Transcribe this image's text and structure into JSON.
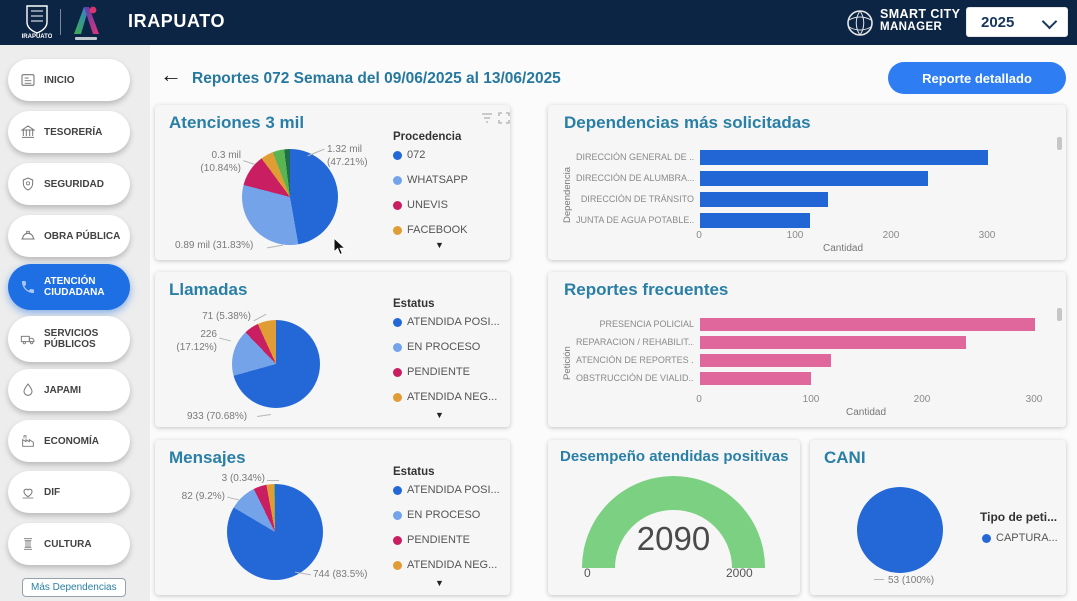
{
  "header": {
    "app_title": "IRAPUATO",
    "crest_caption": "IRAPUATO",
    "smart_city_line1": "SMART CITY",
    "smart_city_line2": "MANAGER",
    "year": "2025"
  },
  "sidebar": {
    "items": [
      {
        "label": "INICIO"
      },
      {
        "label": "TESORERÍA"
      },
      {
        "label": "SEGURIDAD"
      },
      {
        "label": "OBRA PÚBLICA"
      },
      {
        "label": "ATENCIÓN CIUDADANA"
      },
      {
        "label": "SERVICIOS PÚBLICOS"
      },
      {
        "label": "JAPAMI"
      },
      {
        "label": "ECONOMÍA"
      },
      {
        "label": "DIF"
      },
      {
        "label": "CULTURA"
      }
    ],
    "active_item": "ATENCIÓN CIUDADANA",
    "active_color": "#1e6fe3",
    "more_button_label": "Más Dependencias"
  },
  "toolbar": {
    "page_title": "Reportes 072 Semana del 09/06/2025 al 13/06/2025",
    "detail_button_label": "Reporte detallado",
    "button_color": "#2e7df2"
  },
  "chart_data": [
    {
      "id": "atenciones",
      "type": "pie",
      "title": "Atenciones 3 mil",
      "legend_title": "Procedencia",
      "legend_position": "right",
      "legend": [
        {
          "label": "072",
          "color": "#2468d7"
        },
        {
          "label": "WHATSAPP",
          "color": "#74a3ea"
        },
        {
          "label": "UNEVIS",
          "color": "#ca1e63"
        },
        {
          "label": "FACEBOOK",
          "color": "#e09c35"
        }
      ],
      "slices": [
        {
          "label": "1.32 mil (47.21%)",
          "pct": 47.21,
          "color": "#2468d7"
        },
        {
          "label": "0.89 mil (31.83%)",
          "pct": 31.83,
          "color": "#74a3ea"
        },
        {
          "label": "0.3 mil (10.84%)",
          "pct": 10.84,
          "color": "#ca1e63"
        },
        {
          "pct": 4.3,
          "color": "#e09c35"
        },
        {
          "pct": 3.9,
          "color": "#58b552"
        },
        {
          "pct": 1.92,
          "color": "#1e6e49"
        }
      ]
    },
    {
      "id": "dependencias",
      "type": "bar",
      "title": "Dependencias más solicitadas",
      "xlabel": "Cantidad",
      "ylabel": "Dependencia",
      "xticks": [
        "0",
        "100",
        "200",
        "300"
      ],
      "xlim": [
        0,
        300
      ],
      "bar_color": "#2166d4",
      "categories": [
        "DIRECCIÓN GENERAL DE ...",
        "DIRECCIÓN DE ALUMBRA...",
        "DIRECCIÓN DE TRÁNSITO",
        "JUNTA DE AGUA POTABLE..."
      ],
      "values": [
        300,
        237,
        133,
        115
      ]
    },
    {
      "id": "llamadas",
      "type": "pie",
      "title": "Llamadas",
      "legend_title": "Estatus",
      "legend_position": "right",
      "legend": [
        {
          "label": "ATENDIDA POSI...",
          "color": "#2468d7"
        },
        {
          "label": "EN PROCESO",
          "color": "#74a3ea"
        },
        {
          "label": "PENDIENTE",
          "color": "#ca1e63"
        },
        {
          "label": "ATENDIDA NEG...",
          "color": "#e09c35"
        }
      ],
      "slices": [
        {
          "label": "933 (70.68%)",
          "pct": 70.68,
          "color": "#2468d7"
        },
        {
          "label": "226 (17.12%)",
          "pct": 17.12,
          "color": "#74a3ea"
        },
        {
          "label": "71 (5.38%)",
          "pct": 5.38,
          "color": "#ca1e63"
        },
        {
          "pct": 6.82,
          "color": "#e09c35"
        }
      ]
    },
    {
      "id": "reportes_frecuentes",
      "type": "bar",
      "title": "Reportes frecuentes",
      "xlabel": "Cantidad",
      "ylabel": "Petición",
      "xticks": [
        "0",
        "100",
        "200",
        "300"
      ],
      "xlim": [
        0,
        300
      ],
      "bar_color": "#e0679c",
      "categories": [
        "PRESENCIA POLICIAL",
        "REPARACION / REHABILIT...",
        "ATENCIÓN DE REPORTES ...",
        "OBSTRUCCIÓN DE VIALID..."
      ],
      "values": [
        300,
        238,
        117,
        99
      ]
    },
    {
      "id": "mensajes",
      "type": "pie",
      "title": "Mensajes",
      "legend_title": "Estatus",
      "legend_position": "right",
      "legend": [
        {
          "label": "ATENDIDA POSI...",
          "color": "#2468d7"
        },
        {
          "label": "EN PROCESO",
          "color": "#74a3ea"
        },
        {
          "label": "PENDIENTE",
          "color": "#ca1e63"
        },
        {
          "label": "ATENDIDA NEG...",
          "color": "#e09c35"
        }
      ],
      "slices": [
        {
          "label": "744 (83.5%)",
          "pct": 83.5,
          "color": "#2468d7"
        },
        {
          "label": "82 (9.2%)",
          "pct": 9.2,
          "color": "#74a3ea"
        },
        {
          "pct": 4.4,
          "color": "#ca1e63"
        },
        {
          "pct": 2.56,
          "color": "#e09c35"
        },
        {
          "label": "3 (0.34%)",
          "pct": 0.34,
          "color": "#58b552"
        }
      ]
    },
    {
      "id": "desempeno",
      "type": "gauge",
      "title": "Desempeño atendidas positivas",
      "value": "2090",
      "min": "0",
      "max": "2000",
      "color": "#7bd081"
    },
    {
      "id": "cani",
      "type": "pie",
      "title": "CANI",
      "legend_title": "Tipo de peti...",
      "legend_position": "right",
      "legend": [
        {
          "label": "CAPTURA...",
          "color": "#2468d7"
        }
      ],
      "slices": [
        {
          "label": "53 (100%)",
          "pct": 100,
          "color": "#2468d7"
        }
      ]
    }
  ]
}
